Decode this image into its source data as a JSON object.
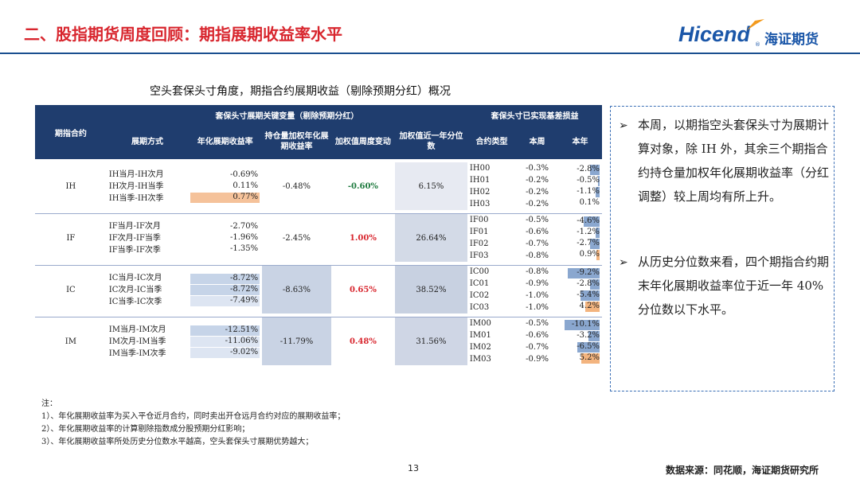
{
  "header": {
    "title": "二、股指期货周度回顾：期指展期收益率水平",
    "logo_brand": "Hicend",
    "logo_reg": "®",
    "logo_cn": "海证期货"
  },
  "subtitle": "空头套保头寸角度，期指合约展期收益（剔除预期分红）概况",
  "table": {
    "group_header_left": "套保头寸展期关键变量（剔除预期分红）",
    "group_header_right": "套保头寸已实现基差损益",
    "col_contract": "期指合约",
    "col_method": "展期方式",
    "col_annual": "年化展期收益率",
    "col_weighted": "持仓量加权年化展期收益率",
    "col_weekly_change": "加权值周度变动",
    "col_percentile": "加权值近一年分位数",
    "col_type": "合约类型",
    "col_week": "本周",
    "col_year": "本年",
    "groups": [
      {
        "name": "IH",
        "rows": [
          {
            "method": "IH当月-IH次月",
            "annual": "-0.69%"
          },
          {
            "method": "IH次月-IH当季",
            "annual": "0.11%"
          },
          {
            "method": "IH当季-IH次季",
            "annual": "0.77%"
          }
        ],
        "weighted": "-0.48%",
        "change": "-0.60%",
        "percentile": "6.15%",
        "contracts": [
          {
            "type": "IH00",
            "week": "-0.3%",
            "year": "-2.8%"
          },
          {
            "type": "IH01",
            "week": "-0.2%",
            "year": "-0.5%"
          },
          {
            "type": "IH02",
            "week": "-0.2%",
            "year": "-1.1%"
          },
          {
            "type": "IH03",
            "week": "-0.2%",
            "year": "0.1%"
          }
        ]
      },
      {
        "name": "IF",
        "rows": [
          {
            "method": "IF当月-IF次月",
            "annual": "-2.70%"
          },
          {
            "method": "IF次月-IF当季",
            "annual": "-1.96%"
          },
          {
            "method": "IF当季-IF次季",
            "annual": "-1.35%"
          }
        ],
        "weighted": "-2.45%",
        "change": "1.00%",
        "percentile": "26.64%",
        "contracts": [
          {
            "type": "IF00",
            "week": "-0.5%",
            "year": "-4.6%"
          },
          {
            "type": "IF01",
            "week": "-0.6%",
            "year": "-1.2%"
          },
          {
            "type": "IF02",
            "week": "-0.7%",
            "year": "-2.7%"
          },
          {
            "type": "IF03",
            "week": "-0.8%",
            "year": "0.9%"
          }
        ]
      },
      {
        "name": "IC",
        "rows": [
          {
            "method": "IC当月-IC次月",
            "annual": "-8.72%"
          },
          {
            "method": "IC次月-IC当季",
            "annual": "-8.72%"
          },
          {
            "method": "IC当季-IC次季",
            "annual": "-7.49%"
          }
        ],
        "weighted": "-8.63%",
        "change": "0.65%",
        "percentile": "38.52%",
        "contracts": [
          {
            "type": "IC00",
            "week": "-0.8%",
            "year": "-9.2%"
          },
          {
            "type": "IC01",
            "week": "-0.9%",
            "year": "-2.8%"
          },
          {
            "type": "IC02",
            "week": "-1.0%",
            "year": "-5.4%"
          },
          {
            "type": "IC03",
            "week": "-1.0%",
            "year": "4.2%"
          }
        ]
      },
      {
        "name": "IM",
        "rows": [
          {
            "method": "IM当月-IM次月",
            "annual": "-12.51%"
          },
          {
            "method": "IM次月-IM当季",
            "annual": "-11.06%"
          },
          {
            "method": "IM当季-IM次季",
            "annual": "-9.02%"
          }
        ],
        "weighted": "-11.79%",
        "change": "0.48%",
        "percentile": "31.56%",
        "contracts": [
          {
            "type": "IM00",
            "week": "-0.5%",
            "year": "-10.1%"
          },
          {
            "type": "IM01",
            "week": "-0.6%",
            "year": "-3.2%"
          },
          {
            "type": "IM02",
            "week": "-0.7%",
            "year": "-6.5%"
          },
          {
            "type": "IM03",
            "week": "-0.9%",
            "year": "5.2%"
          }
        ]
      }
    ]
  },
  "commentary": {
    "p1": "本周，以期指空头套保头寸为展期计算对象，除 IH 外，其余三个期指合约持仓量加权年化展期收益率（分红调整）较上周均有所上升。",
    "p2": "从历史分位数来看，四个期指合约期末年化展期收益率位于近一年 40%分位数以下水平。"
  },
  "notes": {
    "head": "注：",
    "n1": "1）、年化展期收益率为买入平仓近月合约，同时卖出开仓远月合约对应的展期收益率；",
    "n2": "2）、年化展期收益率的计算剔除指数成分股预期分红影响；",
    "n3": "3）、年化展期收益率所处历史分位数水平越高，空头套保头寸展期优势越大；"
  },
  "footer": {
    "page": "13",
    "source": "数据来源：同花顺，海证期货研究所"
  },
  "colors": {
    "title_red": "#d8262e",
    "header_navy": "#1f3d6e",
    "brand_blue": "#1a56a8"
  }
}
